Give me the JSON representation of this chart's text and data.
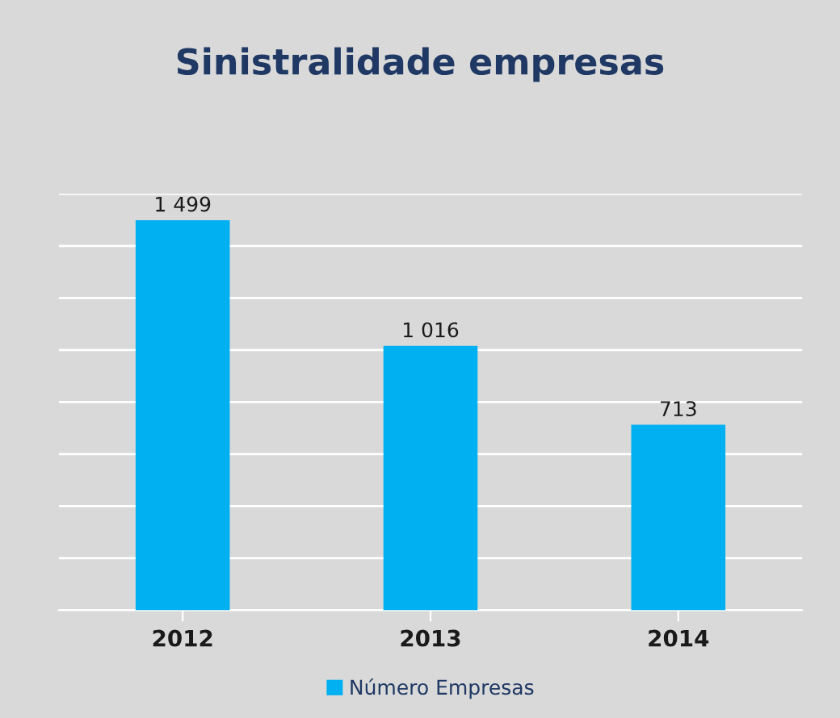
{
  "chart_data": {
    "type": "bar",
    "title": "Sinistralidade empresas",
    "categories": [
      "2012",
      "2013",
      "2014"
    ],
    "series": [
      {
        "name": "Número Empresas",
        "color": "#00b0f0",
        "values": [
          1499,
          1016,
          713
        ],
        "value_labels": [
          "1 499",
          "1 016",
          "713"
        ]
      }
    ],
    "ylim": [
      0,
      1600
    ],
    "yticks": [
      {
        "value": 0,
        "label": null
      },
      {
        "value": 200,
        "label": null
      },
      {
        "value": 400,
        "label": null
      },
      {
        "value": 600,
        "label": null
      },
      {
        "value": 800,
        "label": null
      },
      {
        "value": 1000,
        "label": null
      },
      {
        "value": 1200,
        "label": null
      },
      {
        "value": 1400,
        "label": null
      },
      {
        "value": 1600,
        "label": null
      }
    ],
    "tick_labels": "x",
    "grid": "y",
    "legend": "bottom"
  }
}
